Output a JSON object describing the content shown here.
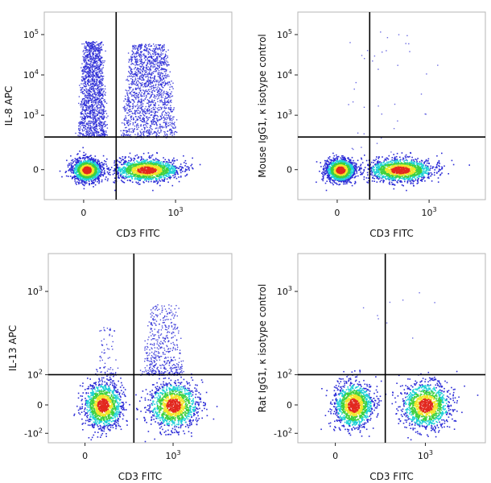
{
  "figure": {
    "description_panels": 4
  },
  "chart_data": [
    {
      "type": "scatter",
      "xlabel": "CD3 FITC",
      "ylabel": "IL-8 APC",
      "x_scale": "biexponential",
      "y_scale": "biexponential",
      "x_ticks": [
        {
          "value": 0,
          "label": "0"
        },
        {
          "value": 1000,
          "label": "10^3"
        }
      ],
      "y_ticks": [
        {
          "value": 0,
          "label": "0"
        },
        {
          "value": 1000,
          "label": "10^3"
        },
        {
          "value": 10000,
          "label": "10^4"
        },
        {
          "value": 100000,
          "label": "10^5"
        }
      ],
      "gates": {
        "x": 250,
        "y": 600
      },
      "populations": [
        {
          "name": "CD3- IL-8-",
          "x_center": 10,
          "y_center": 0,
          "density": "high"
        },
        {
          "name": "CD3+ IL-8-",
          "x_center": 600,
          "y_center": 0,
          "density": "high"
        },
        {
          "name": "CD3- IL-8+",
          "x_range": [
            -50,
            150
          ],
          "y_range": [
            600,
            70000
          ],
          "density": "medium"
        },
        {
          "name": "CD3+ IL-8+",
          "x_range": [
            300,
            1000
          ],
          "y_range": [
            600,
            60000
          ],
          "density": "medium"
        }
      ]
    },
    {
      "type": "scatter",
      "xlabel": "CD3 FITC",
      "ylabel": "Mouse IgG1, κ isotype control",
      "x_scale": "biexponential",
      "y_scale": "biexponential",
      "x_ticks": [
        {
          "value": 0,
          "label": "0"
        },
        {
          "value": 1000,
          "label": "10^3"
        }
      ],
      "y_ticks": [
        {
          "value": 0,
          "label": "0"
        },
        {
          "value": 1000,
          "label": "10^3"
        },
        {
          "value": 10000,
          "label": "10^4"
        },
        {
          "value": 100000,
          "label": "10^5"
        }
      ],
      "gates": {
        "x": 250,
        "y": 600
      },
      "populations": [
        {
          "name": "CD3-",
          "x_center": 10,
          "y_center": 0,
          "density": "high"
        },
        {
          "name": "CD3+",
          "x_center": 600,
          "y_center": 0,
          "density": "high"
        },
        {
          "name": "background",
          "density": "sparse"
        }
      ]
    },
    {
      "type": "scatter",
      "xlabel": "CD3 FITC",
      "ylabel": "IL-13 APC",
      "x_scale": "biexponential",
      "y_scale": "biexponential",
      "x_ticks": [
        {
          "value": 0,
          "label": "0"
        },
        {
          "value": 1000,
          "label": "10^3"
        }
      ],
      "y_ticks": [
        {
          "value": -100,
          "label": "-10^2"
        },
        {
          "value": 0,
          "label": "0"
        },
        {
          "value": 100,
          "label": "10^2"
        },
        {
          "value": 1000,
          "label": "10^3"
        }
      ],
      "gates": {
        "x": 500,
        "y": 100
      },
      "populations": [
        {
          "name": "CD3- IL-13-",
          "x_center": 150,
          "y_center": 0,
          "density": "high"
        },
        {
          "name": "CD3+ IL-13-",
          "x_center": 1000,
          "y_center": 0,
          "density": "high"
        },
        {
          "name": "CD3+ IL-13+",
          "x_range": [
            600,
            1500
          ],
          "y_range": [
            100,
            700
          ],
          "density": "medium"
        },
        {
          "name": "CD3- IL-13+",
          "x_range": [
            100,
            300
          ],
          "y_range": [
            100,
            400
          ],
          "density": "low"
        }
      ]
    },
    {
      "type": "scatter",
      "xlabel": "CD3 FITC",
      "ylabel": "Rat IgG1, κ isotype control",
      "x_scale": "biexponential",
      "y_scale": "biexponential",
      "x_ticks": [
        {
          "value": 0,
          "label": "0"
        },
        {
          "value": 1000,
          "label": "10^3"
        }
      ],
      "y_ticks": [
        {
          "value": -100,
          "label": "-10^2"
        },
        {
          "value": 0,
          "label": "0"
        },
        {
          "value": 100,
          "label": "10^2"
        },
        {
          "value": 1000,
          "label": "10^3"
        }
      ],
      "gates": {
        "x": 500,
        "y": 100
      },
      "populations": [
        {
          "name": "CD3-",
          "x_center": 150,
          "y_center": 0,
          "density": "high"
        },
        {
          "name": "CD3+",
          "x_center": 1000,
          "y_center": 0,
          "density": "high"
        },
        {
          "name": "background",
          "density": "sparse"
        }
      ]
    }
  ],
  "colors": {
    "density_low": "#2b2bd6",
    "density_mid": "#1fd1d6",
    "density_midhigh": "#3ed13e",
    "density_high": "#f2e52a",
    "density_peak": "#e2281f",
    "gate_line": "#000000"
  }
}
